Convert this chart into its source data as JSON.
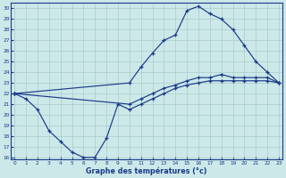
{
  "xlabel": "Graphe des températures (°c)",
  "bg_color": "#cce8e8",
  "line_color": "#1a3a8a",
  "grid_color": "#aacccc",
  "xlim": [
    -0.3,
    23.3
  ],
  "ylim": [
    15.8,
    30.5
  ],
  "yticks": [
    16,
    17,
    18,
    19,
    20,
    21,
    22,
    23,
    24,
    25,
    26,
    27,
    28,
    29,
    30
  ],
  "xticks": [
    0,
    1,
    2,
    3,
    4,
    5,
    6,
    7,
    8,
    9,
    10,
    11,
    12,
    13,
    14,
    15,
    16,
    17,
    18,
    19,
    20,
    21,
    22,
    23
  ],
  "curve_main_x": [
    0,
    10,
    11,
    12,
    13,
    14,
    15,
    16,
    17,
    18,
    19,
    20,
    21,
    22,
    23
  ],
  "curve_main_y": [
    22.0,
    23.0,
    24.5,
    25.8,
    27.0,
    27.5,
    29.8,
    30.2,
    29.5,
    29.0,
    28.0,
    26.5,
    25.0,
    24.0,
    23.0
  ],
  "curve_diag_x": [
    0,
    10,
    11,
    12,
    13,
    14,
    15,
    16,
    17,
    18,
    19,
    20,
    21,
    22,
    23
  ],
  "curve_diag_y": [
    22.0,
    21.0,
    21.5,
    22.0,
    22.5,
    22.8,
    23.2,
    23.5,
    23.5,
    23.8,
    23.5,
    23.5,
    23.5,
    23.5,
    23.0
  ],
  "curve_low_x": [
    0,
    1,
    2,
    3,
    4,
    5,
    6,
    7,
    8,
    9,
    10,
    11,
    12,
    13,
    14,
    15,
    16,
    17,
    18,
    19,
    20,
    21,
    22,
    23
  ],
  "curve_low_y": [
    22.0,
    21.5,
    20.5,
    18.5,
    17.5,
    16.5,
    16.0,
    16.0,
    17.8,
    21.0,
    20.5,
    21.0,
    21.5,
    22.0,
    22.5,
    22.8,
    23.0,
    23.2,
    23.2,
    23.2,
    23.2,
    23.2,
    23.2,
    23.0
  ]
}
